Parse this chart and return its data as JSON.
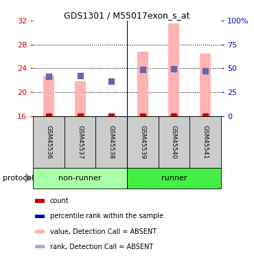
{
  "title": "GDS1301 / M55017exon_s_at",
  "samples": [
    "GSM45536",
    "GSM45537",
    "GSM45538",
    "GSM45539",
    "GSM45540",
    "GSM45541"
  ],
  "ylim_left": [
    16,
    32
  ],
  "ylim_right": [
    0,
    100
  ],
  "yticks_left": [
    16,
    20,
    24,
    28,
    32
  ],
  "yticks_right": [
    0,
    25,
    50,
    75,
    100
  ],
  "ytick_right_labels": [
    "0",
    "25",
    "50",
    "75",
    "100%"
  ],
  "pink_bar_bottom": 16,
  "pink_bar_tops": [
    22.8,
    21.8,
    16.1,
    26.8,
    31.5,
    26.5
  ],
  "blue_dot_y": [
    22.7,
    22.8,
    21.9,
    23.8,
    23.9,
    23.6
  ],
  "red_dot_y": [
    16,
    16,
    16,
    16,
    16,
    16
  ],
  "pink_color": "#FFB3B3",
  "blue_color": "#6666AA",
  "red_color": "#CC0000",
  "nonrunner_color": "#AAFFAA",
  "runner_color": "#44EE44",
  "sample_box_color": "#CCCCCC",
  "protocol_label": "protocol",
  "left_axis_color": "#CC0000",
  "right_axis_color": "#0000CC",
  "legend_colors": [
    "#CC0000",
    "#0000CC",
    "#FFB3B3",
    "#AAAACC"
  ],
  "legend_labels": [
    "count",
    "percentile rank within the sample",
    "value, Detection Call = ABSENT",
    "rank, Detection Call = ABSENT"
  ]
}
